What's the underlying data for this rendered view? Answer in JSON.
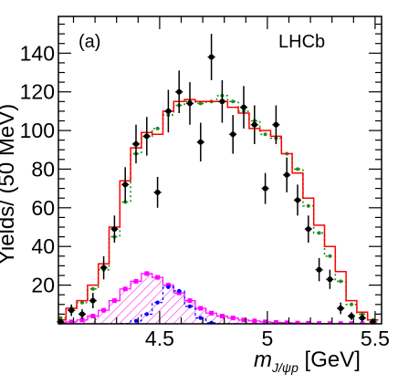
{
  "chart_data": {
    "type": "scatter",
    "panel_label": "(a)",
    "experiment_label": "LHCb",
    "xlabel": "m_{J/ψp} [GeV]",
    "xlabel_main": "m",
    "xlabel_sub": "J/ψp",
    "xlabel_unit": " [GeV]",
    "ylabel": "Yields/ (50 MeV)",
    "xlim": [
      4.03,
      5.53
    ],
    "ylim": [
      0,
      159
    ],
    "x_ticks": [
      4.5,
      5,
      5.5
    ],
    "x_tick_labels": [
      "4.5",
      "5",
      "5.5"
    ],
    "y_ticks": [
      20,
      40,
      60,
      80,
      100,
      120,
      140
    ],
    "y_tick_labels": [
      "20",
      "40",
      "60",
      "80",
      "100",
      "120",
      "140"
    ],
    "bin_width": 0.05,
    "data": {
      "x": [
        4.04,
        4.09,
        4.14,
        4.19,
        4.24,
        4.29,
        4.34,
        4.39,
        4.44,
        4.49,
        4.54,
        4.59,
        4.64,
        4.69,
        4.74,
        4.79,
        4.84,
        4.89,
        4.94,
        4.99,
        5.04,
        5.09,
        5.14,
        5.19,
        5.24,
        5.29,
        5.34,
        5.39,
        5.44,
        5.49
      ],
      "y": [
        1,
        7,
        5,
        12,
        29,
        49,
        72,
        93,
        97,
        68,
        110,
        120,
        114,
        94,
        138,
        115,
        98,
        112,
        103,
        70,
        103,
        77,
        64,
        49,
        28,
        23,
        8,
        4,
        3,
        1
      ],
      "yerr": [
        1.5,
        3,
        2.5,
        4,
        6,
        7,
        9,
        10,
        10,
        8,
        11,
        11,
        11,
        10,
        12,
        11,
        10,
        11,
        10,
        8,
        10,
        9,
        8,
        7,
        6,
        5,
        3,
        2,
        2,
        1
      ]
    },
    "series": [
      {
        "role": "total fit",
        "style": "solid histogram",
        "color": "#ff0000",
        "values": [
          2,
          8,
          12,
          20,
          31,
          50,
          74,
          91,
          99,
          98,
          110,
          115,
          116,
          115,
          115,
          115,
          112,
          109,
          101,
          100,
          97,
          88,
          78,
          65,
          51,
          40,
          27,
          12,
          6,
          2
        ]
      },
      {
        "role": "alternative fit",
        "style": "dotted histogram",
        "color": "#228b22",
        "values": [
          3,
          8,
          11,
          18,
          28,
          45,
          63,
          88,
          97,
          101,
          108,
          113,
          115,
          114,
          115,
          118,
          115,
          110,
          105,
          98,
          96,
          88,
          80,
          61,
          47,
          35,
          22,
          10,
          5,
          2
        ]
      },
      {
        "role": "hatched component",
        "style": "hatched area with square markers",
        "color": "#ff00ff",
        "values": [
          0.5,
          1,
          2,
          4,
          7,
          12,
          18,
          22,
          26,
          24,
          20,
          16,
          12,
          8,
          5.5,
          4,
          3,
          2,
          1.5,
          1,
          0.7,
          0.5,
          0.4,
          0.3,
          0.2,
          0.1,
          0.1,
          0.1,
          0,
          0
        ]
      },
      {
        "role": "dashed component",
        "style": "dashed line with markers",
        "color": "#0000ff",
        "values": [
          0,
          0,
          0,
          0,
          0,
          0,
          0.2,
          1.5,
          5,
          11,
          19,
          17,
          9,
          3,
          0.5,
          0.1,
          0.1,
          0,
          0,
          0,
          0,
          0,
          0,
          0,
          0,
          0,
          0,
          0,
          0,
          0
        ]
      }
    ]
  }
}
